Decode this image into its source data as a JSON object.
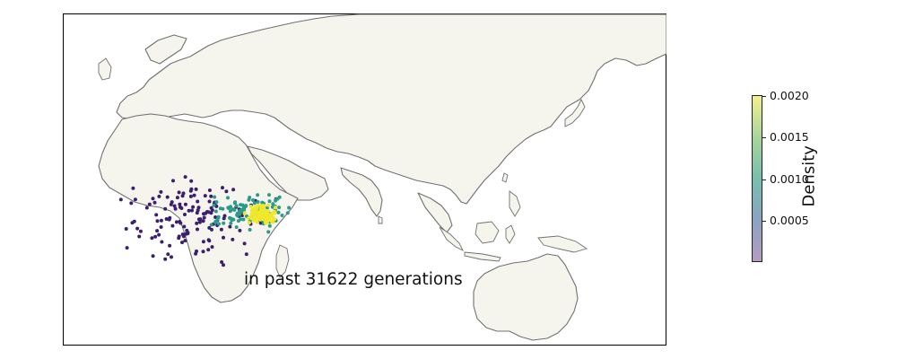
{
  "caption": "in past 31622 generations",
  "colorbar": {
    "label": "Density",
    "ticks": [
      "0.0020",
      "0.0015",
      "0.0010",
      "0.0005"
    ],
    "colors": [
      "#b59cc2",
      "#8aa3c0",
      "#78bfae",
      "#a8d59a",
      "#f4f08e"
    ]
  },
  "colors": {
    "land": "#f5f5ee",
    "coast": "#707070",
    "point_low": "#3b1f6e",
    "point_mid": "#2a9a8a",
    "point_high": "#f0e82a"
  }
}
